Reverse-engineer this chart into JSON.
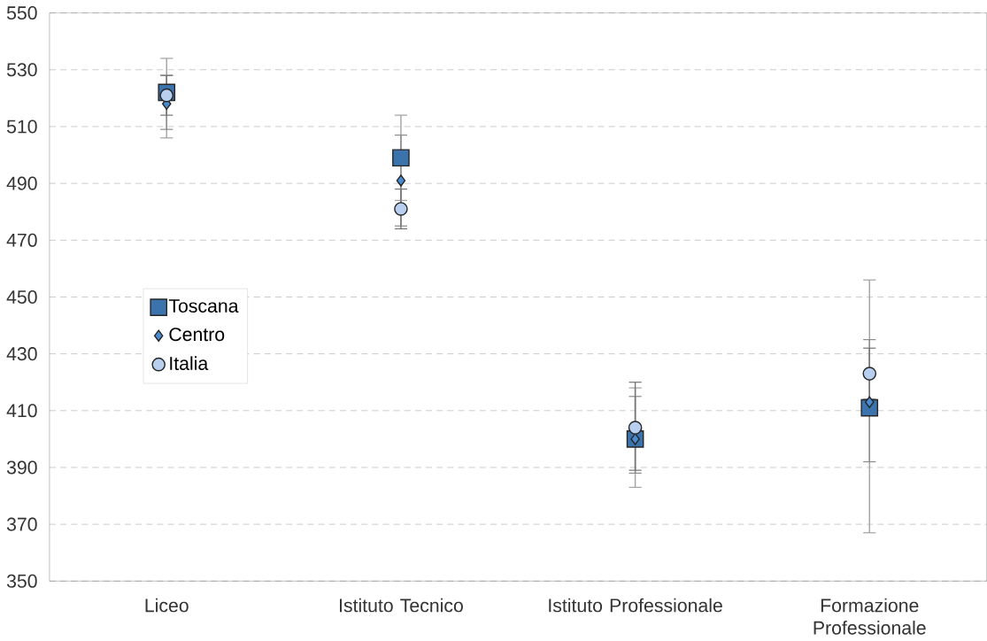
{
  "chart_data": {
    "type": "scatter",
    "categories": [
      "Liceo",
      "Istituto Tecnico",
      "Istituto Professionale",
      "Formazione Professionale"
    ],
    "ylim": [
      350,
      550
    ],
    "yticks": [
      350,
      370,
      390,
      410,
      430,
      450,
      470,
      490,
      510,
      530,
      550
    ],
    "grid": "y",
    "legend": "left",
    "series": [
      {
        "name": "Toscana",
        "color": "#3b73ad",
        "marker": "square",
        "values": [
          522,
          499,
          400,
          411
        ],
        "errors": [
          [
            506,
            534
          ],
          [
            484,
            514
          ],
          [
            383,
            418
          ],
          [
            367,
            456
          ]
        ]
      },
      {
        "name": "Centro",
        "color": "#4a8ad0",
        "marker": "diamond",
        "values": [
          518,
          491,
          400,
          413
        ],
        "errors": [
          [
            509,
            528
          ],
          [
            475,
            507
          ],
          [
            388,
            415
          ],
          [
            392,
            435
          ]
        ]
      },
      {
        "name": "Italia",
        "color": "#b9cff0",
        "marker": "circle",
        "values": [
          521,
          481,
          404,
          423
        ],
        "errors": [
          [
            514,
            528
          ],
          [
            474,
            488
          ],
          [
            389,
            420
          ],
          [
            414,
            432
          ]
        ]
      }
    ]
  }
}
